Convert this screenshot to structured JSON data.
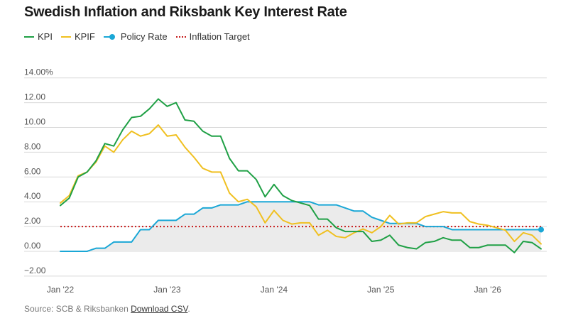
{
  "title": "Swedish Inflation and Riksbank Key Interest Rate",
  "legend": [
    {
      "label": "KPI",
      "color": "#1fa045",
      "style": "line"
    },
    {
      "label": "KPIF",
      "color": "#f0c020",
      "style": "line"
    },
    {
      "label": "Policy Rate",
      "color": "#1aa7d6",
      "style": "line-dot"
    },
    {
      "label": "Inflation Target",
      "color": "#c61a1a",
      "style": "dotted"
    }
  ],
  "source": {
    "prefix": "Source: SCB & Riksbanken",
    "link_label": "Download CSV",
    "suffix": "."
  },
  "chart_data": {
    "type": "line",
    "title": "Swedish Inflation and Riksbank Key Interest Rate",
    "xlabel": "",
    "ylabel": "",
    "ylim": [
      -2,
      14
    ],
    "yticks": [
      "14.00%",
      "12.00",
      "10.00",
      "8.00",
      "6.00",
      "4.00",
      "2.00",
      "0.00",
      "−2.00"
    ],
    "ytick_values": [
      14,
      12,
      10,
      8,
      6,
      4,
      2,
      0,
      -2
    ],
    "xticks": [
      "Jan '22",
      "Jan '23",
      "Jan '24",
      "Jan '25",
      "Jan '26"
    ],
    "x_start": "2022-01",
    "x": [
      "2022-01",
      "2022-02",
      "2022-03",
      "2022-04",
      "2022-05",
      "2022-06",
      "2022-07",
      "2022-08",
      "2022-09",
      "2022-10",
      "2022-11",
      "2022-12",
      "2023-01",
      "2023-02",
      "2023-03",
      "2023-04",
      "2023-05",
      "2023-06",
      "2023-07",
      "2023-08",
      "2023-09",
      "2023-10",
      "2023-11",
      "2023-12",
      "2024-01",
      "2024-02",
      "2024-03",
      "2024-04",
      "2024-05",
      "2024-06",
      "2024-07",
      "2024-08",
      "2024-09",
      "2024-10",
      "2024-11",
      "2024-12",
      "2025-01",
      "2025-02",
      "2025-03",
      "2025-04",
      "2025-05",
      "2025-06",
      "2025-07",
      "2025-08",
      "2025-09",
      "2025-10",
      "2025-11",
      "2025-12",
      "2026-01",
      "2026-02",
      "2026-03",
      "2026-04",
      "2026-05",
      "2026-06",
      "2026-07"
    ],
    "grid": true,
    "reference_line": {
      "name": "Inflation Target",
      "value": 2.0,
      "color": "#c61a1a"
    },
    "series": [
      {
        "name": "KPI",
        "color": "#1fa045",
        "values": [
          3.7,
          4.3,
          6.0,
          6.4,
          7.3,
          8.7,
          8.5,
          9.8,
          10.8,
          10.9,
          11.5,
          12.3,
          11.7,
          12.0,
          10.6,
          10.5,
          9.7,
          9.3,
          9.3,
          7.5,
          6.5,
          6.5,
          5.8,
          4.4,
          5.4,
          4.5,
          4.1,
          3.9,
          3.7,
          2.6,
          2.6,
          1.9,
          1.6,
          1.6,
          1.6,
          0.8,
          0.9,
          1.3,
          0.5,
          0.3,
          0.2,
          0.7,
          0.8,
          1.1,
          0.9,
          0.9,
          0.3,
          0.3,
          0.5,
          0.5,
          0.5,
          -0.1,
          0.8,
          0.7,
          0.2
        ]
      },
      {
        "name": "KPIF",
        "color": "#f0c020",
        "values": [
          3.9,
          4.5,
          6.1,
          6.4,
          7.2,
          8.5,
          8.0,
          9.0,
          9.7,
          9.3,
          9.5,
          10.2,
          9.3,
          9.4,
          8.4,
          7.6,
          6.7,
          6.4,
          6.4,
          4.7,
          4.0,
          4.2,
          3.6,
          2.3,
          3.3,
          2.5,
          2.2,
          2.3,
          2.3,
          1.3,
          1.7,
          1.2,
          1.1,
          1.5,
          1.8,
          1.5,
          2.0,
          2.9,
          2.2,
          2.3,
          2.3,
          2.8,
          3.0,
          3.2,
          3.1,
          3.1,
          2.4,
          2.2,
          2.1,
          1.9,
          1.7,
          0.8,
          1.5,
          1.3,
          0.6
        ]
      },
      {
        "name": "Policy Rate",
        "color": "#1aa7d6",
        "values": [
          0,
          0,
          0,
          0,
          0.25,
          0.25,
          0.75,
          0.75,
          0.75,
          1.75,
          1.75,
          2.5,
          2.5,
          2.5,
          3.0,
          3.0,
          3.5,
          3.5,
          3.75,
          3.75,
          3.75,
          4.0,
          4.0,
          4.0,
          4.0,
          4.0,
          4.0,
          4.0,
          4.0,
          3.75,
          3.75,
          3.75,
          3.5,
          3.25,
          3.25,
          2.75,
          2.5,
          2.25,
          2.25,
          2.25,
          2.25,
          2.0,
          2.0,
          2.0,
          1.75,
          1.75,
          1.75,
          1.75,
          1.75,
          1.75,
          1.75,
          1.75,
          1.75,
          1.75,
          1.75
        ]
      }
    ]
  }
}
